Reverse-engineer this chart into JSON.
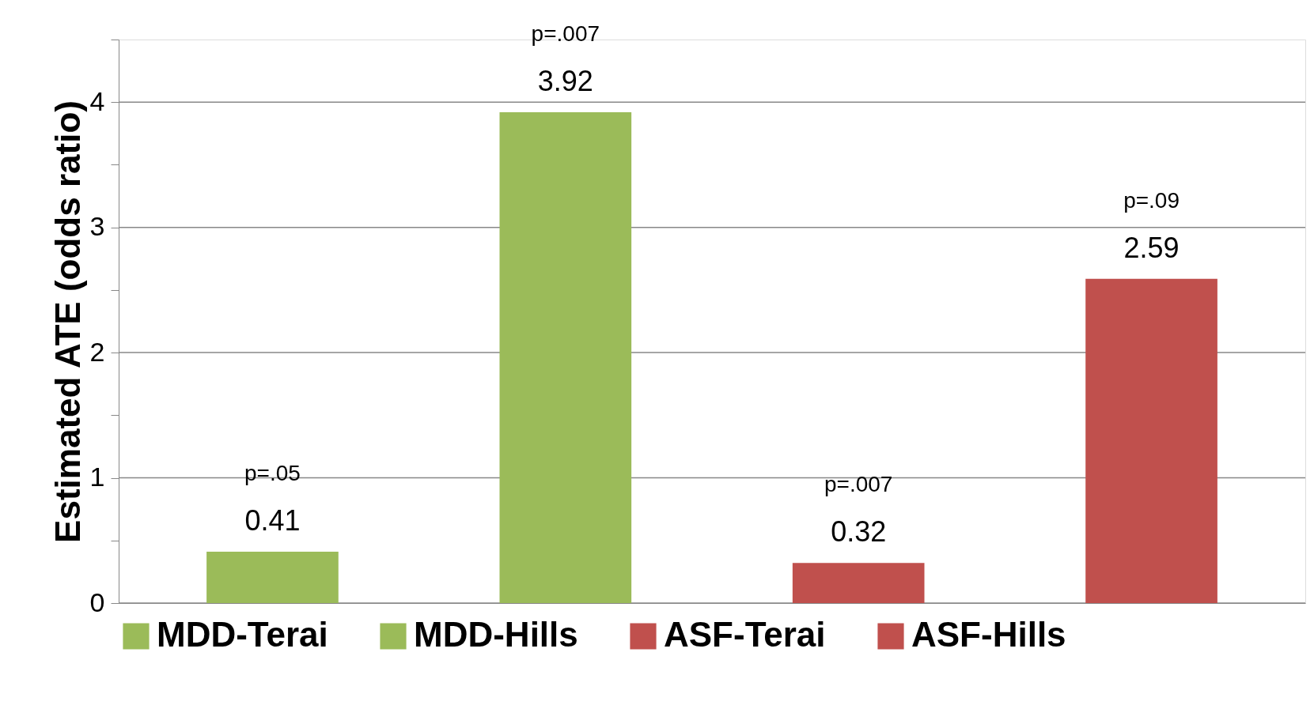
{
  "chart_data": {
    "type": "bar",
    "ylabel": "Estimated ATE (odds ratio)",
    "categories": [
      null,
      null,
      null,
      null
    ],
    "series": [
      {
        "name": "MDD-Terai",
        "color": "#9bbb59",
        "values": [
          0.41,
          null,
          null,
          null
        ]
      },
      {
        "name": "MDD-Hills",
        "color": "#9bbb59",
        "values": [
          null,
          3.92,
          null,
          null
        ]
      },
      {
        "name": "ASF-Terai",
        "color": "#c0504d",
        "values": [
          null,
          null,
          0.32,
          null
        ]
      },
      {
        "name": "ASF-Hills",
        "color": "#c0504d",
        "values": [
          null,
          null,
          null,
          2.59
        ]
      }
    ],
    "ylim": [
      0,
      4.5
    ],
    "yticks": [
      0,
      {
        "value": 0.5,
        "label": null
      },
      1,
      {
        "value": 1.5,
        "label": null
      },
      2,
      {
        "value": 2.5,
        "label": null
      },
      3,
      {
        "value": 3.5,
        "label": null
      },
      4,
      {
        "value": 4.5,
        "label": null
      }
    ],
    "grid": "y",
    "legend": "bottom",
    "data_labels": true,
    "annotations": [
      "p=.05",
      "p=.007",
      "p=.007",
      "p=.09"
    ]
  }
}
